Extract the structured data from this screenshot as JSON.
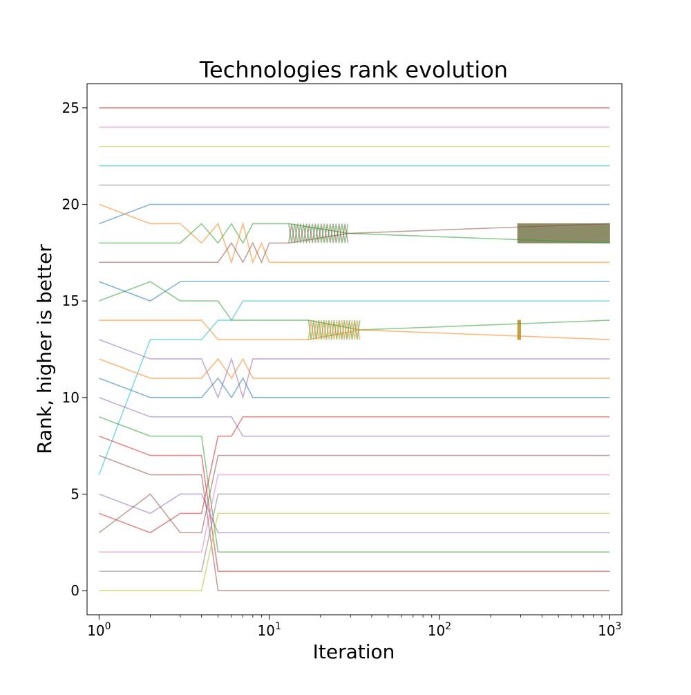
{
  "chart_data": {
    "type": "line",
    "title": "Technologies rank evolution",
    "xlabel": "Iteration",
    "ylabel": "Rank, higher is better",
    "xscale": "log",
    "xlim": [
      0.85,
      1180
    ],
    "ylim": [
      -1.25,
      26.25
    ],
    "x_ticks": [
      1,
      10,
      100,
      1000
    ],
    "x_tick_labels": [
      {
        "base": "10",
        "exp": "0"
      },
      {
        "base": "10",
        "exp": "1"
      },
      {
        "base": "10",
        "exp": "2"
      },
      {
        "base": "10",
        "exp": "3"
      }
    ],
    "y_ticks": [
      0,
      5,
      10,
      15,
      20,
      25
    ],
    "y_tick_labels": [
      "0",
      "5",
      "10",
      "15",
      "20",
      "25"
    ],
    "grid": false,
    "legend": false,
    "line_alpha": 0.55,
    "series": [
      {
        "color": "#1f77b4",
        "points": [
          [
            1,
            19
          ],
          [
            2,
            20
          ],
          [
            1000,
            20
          ]
        ]
      },
      {
        "color": "#ff7f0e",
        "points": [
          [
            1,
            20
          ],
          [
            2,
            19
          ],
          [
            3,
            19
          ],
          [
            4,
            18
          ],
          [
            5,
            19
          ],
          [
            6,
            17
          ],
          [
            7,
            19
          ],
          [
            8,
            17
          ],
          [
            9,
            18
          ],
          [
            10,
            17
          ],
          [
            1000,
            17
          ]
        ]
      },
      {
        "color": "#2ca02c",
        "points": [
          [
            1,
            18
          ],
          [
            3,
            18
          ],
          [
            4,
            19
          ],
          [
            5,
            18
          ],
          [
            6,
            19
          ],
          [
            7,
            18
          ],
          [
            8,
            19
          ],
          [
            13,
            19
          ],
          [
            29,
            18.5
          ],
          [
            1000,
            18
          ]
        ]
      },
      {
        "color": "#8c564b",
        "points": [
          [
            1,
            17
          ],
          [
            5,
            17
          ],
          [
            6,
            18
          ],
          [
            7,
            17
          ],
          [
            8,
            18
          ],
          [
            9,
            17
          ],
          [
            10,
            18
          ],
          [
            13,
            18
          ],
          [
            29,
            18.5
          ],
          [
            1000,
            19
          ]
        ]
      },
      {
        "color": "#1f77b4",
        "points": [
          [
            1,
            16
          ],
          [
            2,
            15
          ],
          [
            3,
            16
          ],
          [
            1000,
            16
          ]
        ]
      },
      {
        "color": "#2ca02c",
        "points": [
          [
            1,
            15
          ],
          [
            2,
            16
          ],
          [
            3,
            15
          ],
          [
            5,
            15
          ],
          [
            6,
            14
          ],
          [
            17,
            14
          ],
          [
            34,
            13.5
          ],
          [
            1000,
            14
          ]
        ]
      },
      {
        "color": "#ff7f0e",
        "points": [
          [
            1,
            14
          ],
          [
            4,
            14
          ],
          [
            5,
            13
          ],
          [
            17,
            13
          ],
          [
            34,
            13.5
          ],
          [
            1000,
            13
          ]
        ]
      },
      {
        "color": "#17becf",
        "points": [
          [
            1,
            6
          ],
          [
            2,
            13
          ],
          [
            4,
            13
          ],
          [
            5,
            14
          ],
          [
            6,
            14
          ],
          [
            7,
            15
          ],
          [
            1000,
            15
          ]
        ]
      },
      {
        "color": "#9467bd",
        "points": [
          [
            1,
            13
          ],
          [
            2,
            12
          ],
          [
            4,
            12
          ],
          [
            5,
            10
          ],
          [
            6,
            12
          ],
          [
            7,
            10
          ],
          [
            8,
            12
          ],
          [
            1000,
            12
          ]
        ]
      },
      {
        "color": "#ff7f0e",
        "points": [
          [
            1,
            12
          ],
          [
            2,
            11
          ],
          [
            4,
            11
          ],
          [
            5,
            12
          ],
          [
            6,
            11
          ],
          [
            7,
            12
          ],
          [
            8,
            11
          ],
          [
            1000,
            11
          ]
        ]
      },
      {
        "color": "#1f77b4",
        "points": [
          [
            1,
            11
          ],
          [
            2,
            10
          ],
          [
            4,
            10
          ],
          [
            5,
            11
          ],
          [
            6,
            10
          ],
          [
            7,
            11
          ],
          [
            8,
            10
          ],
          [
            1000,
            10
          ]
        ]
      },
      {
        "color": "#9467bd",
        "points": [
          [
            1,
            10
          ],
          [
            2,
            9
          ],
          [
            4,
            9
          ],
          [
            5,
            9
          ],
          [
            6,
            9
          ],
          [
            7,
            8
          ],
          [
            1000,
            8
          ]
        ]
      },
      {
        "color": "#2ca02c",
        "points": [
          [
            1,
            9
          ],
          [
            2,
            8
          ],
          [
            4,
            8
          ],
          [
            5,
            2
          ],
          [
            1000,
            2
          ]
        ]
      },
      {
        "color": "#d62728",
        "points": [
          [
            1,
            8
          ],
          [
            2,
            7
          ],
          [
            4,
            7
          ],
          [
            5,
            1
          ],
          [
            1000,
            1
          ]
        ]
      },
      {
        "color": "#8c564b",
        "points": [
          [
            1,
            7
          ],
          [
            2,
            6
          ],
          [
            4,
            6
          ],
          [
            5,
            0
          ],
          [
            1000,
            0
          ]
        ]
      },
      {
        "color": "#9467bd",
        "points": [
          [
            1,
            5
          ],
          [
            2,
            4
          ],
          [
            3,
            5
          ],
          [
            4,
            5
          ],
          [
            5,
            3
          ],
          [
            1000,
            3
          ]
        ]
      },
      {
        "color": "#d62728",
        "points": [
          [
            1,
            4
          ],
          [
            2,
            3
          ],
          [
            3,
            4
          ],
          [
            4,
            4
          ],
          [
            5,
            8
          ],
          [
            6,
            8
          ],
          [
            7,
            9
          ],
          [
            1000,
            9
          ]
        ]
      },
      {
        "color": "#8c564b",
        "points": [
          [
            1,
            3
          ],
          [
            2,
            5
          ],
          [
            3,
            3
          ],
          [
            4,
            3
          ],
          [
            5,
            7
          ],
          [
            1000,
            7
          ]
        ]
      },
      {
        "color": "#e377c2",
        "points": [
          [
            1,
            2
          ],
          [
            4,
            2
          ],
          [
            5,
            6
          ],
          [
            1000,
            6
          ]
        ]
      },
      {
        "color": "#7f7f7f",
        "points": [
          [
            1,
            1
          ],
          [
            4,
            1
          ],
          [
            5,
            5
          ],
          [
            1000,
            5
          ]
        ]
      },
      {
        "color": "#bcbd22",
        "points": [
          [
            1,
            0
          ],
          [
            4,
            0
          ],
          [
            5,
            4
          ],
          [
            1000,
            4
          ]
        ]
      },
      {
        "color": "#7f7f7f",
        "points": [
          [
            1,
            21
          ],
          [
            1000,
            21
          ]
        ]
      },
      {
        "color": "#17becf",
        "points": [
          [
            1,
            22
          ],
          [
            1000,
            22
          ]
        ]
      },
      {
        "color": "#bcbd22",
        "points": [
          [
            1,
            23
          ],
          [
            1000,
            23
          ]
        ]
      },
      {
        "color": "#e377c2",
        "points": [
          [
            1,
            24
          ],
          [
            1000,
            24
          ]
        ]
      },
      {
        "color": "#d62728",
        "points": [
          [
            1,
            25
          ],
          [
            1000,
            25
          ]
        ]
      }
    ],
    "oscillations": [
      {
        "x_start": 13,
        "x_end": 29,
        "y_low": 18,
        "y_high": 19,
        "cycles": 10,
        "colors": [
          "#2ca02c",
          "#8c564b"
        ]
      },
      {
        "x_start": 17,
        "x_end": 34,
        "y_low": 13,
        "y_high": 14,
        "cycles": 10,
        "colors": [
          "#2ca02c",
          "#ff7f0e"
        ]
      }
    ],
    "filled_bands": [
      {
        "x_start": 288,
        "x_end": 1000,
        "y_low": 18,
        "y_high": 19,
        "color": "#8c8c68"
      },
      {
        "x_start": 288,
        "x_end": 300,
        "y_low": 13,
        "y_high": 14,
        "color": "#c8a040"
      }
    ]
  }
}
